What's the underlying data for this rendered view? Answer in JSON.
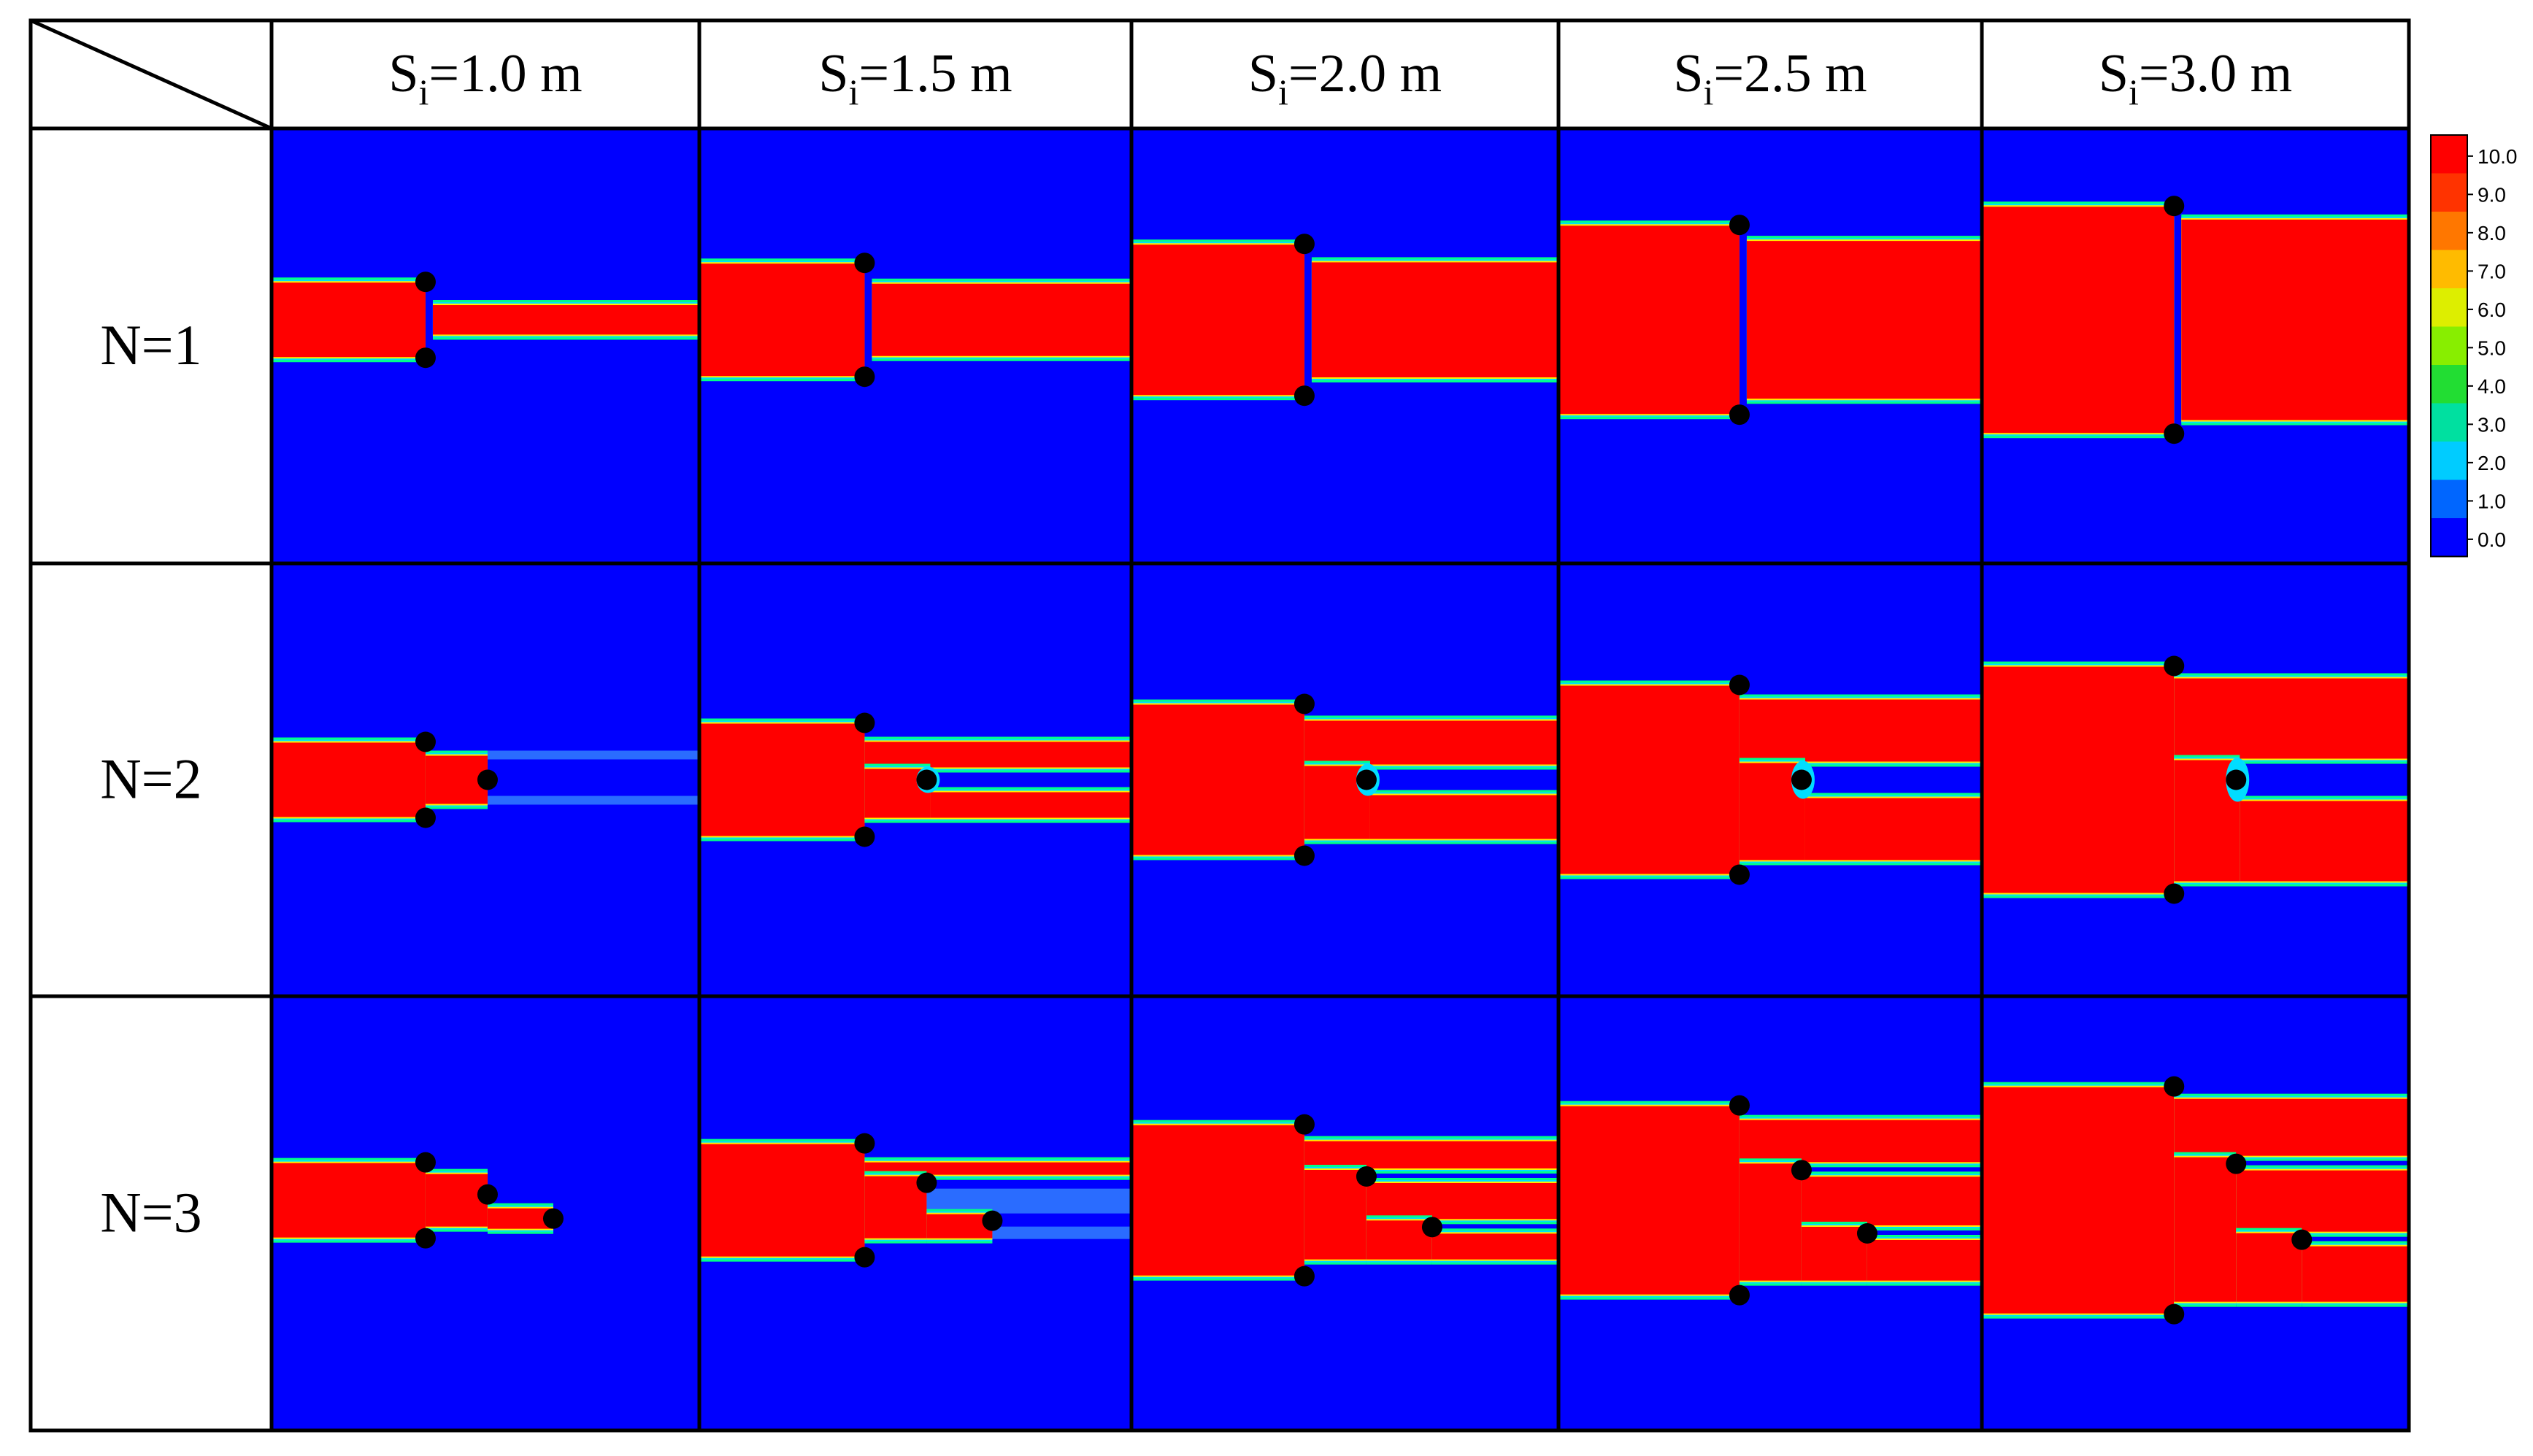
{
  "columns": [
    {
      "sym": "S",
      "sub": "i",
      "rest": "=1.0 m",
      "S": 1.0
    },
    {
      "sym": "S",
      "sub": "i",
      "rest": "=1.5 m",
      "S": 1.5
    },
    {
      "sym": "S",
      "sub": "i",
      "rest": "=2.0 m",
      "S": 2.0
    },
    {
      "sym": "S",
      "sub": "i",
      "rest": "=2.5 m",
      "S": 2.5
    },
    {
      "sym": "S",
      "sub": "i",
      "rest": "=3.0 m",
      "S": 3.0
    }
  ],
  "rows": [
    {
      "label": "N=1",
      "N": 1
    },
    {
      "label": "N=2",
      "N": 2
    },
    {
      "label": "N=3",
      "N": 3
    }
  ],
  "colorbar": {
    "ticks": [
      "10.0",
      "9.0",
      "8.0",
      "7.0",
      "6.0",
      "5.0",
      "4.0",
      "3.0",
      "2.0",
      "1.0",
      "0.0"
    ],
    "colors": [
      "#ff0000",
      "#ff3300",
      "#ff7700",
      "#ffbb00",
      "#ddee00",
      "#88ee00",
      "#22dd33",
      "#00e0a0",
      "#00ccff",
      "#0066ff",
      "#0000ff"
    ]
  },
  "colors": {
    "background_field": "#0000ff",
    "plume": "#ff0000",
    "edge_outer": "#00ff88",
    "edge_mid": "#00ddff",
    "edge_inner": "#ffee00",
    "marker": "#000000",
    "faint_trail": "#2a6cff"
  }
}
